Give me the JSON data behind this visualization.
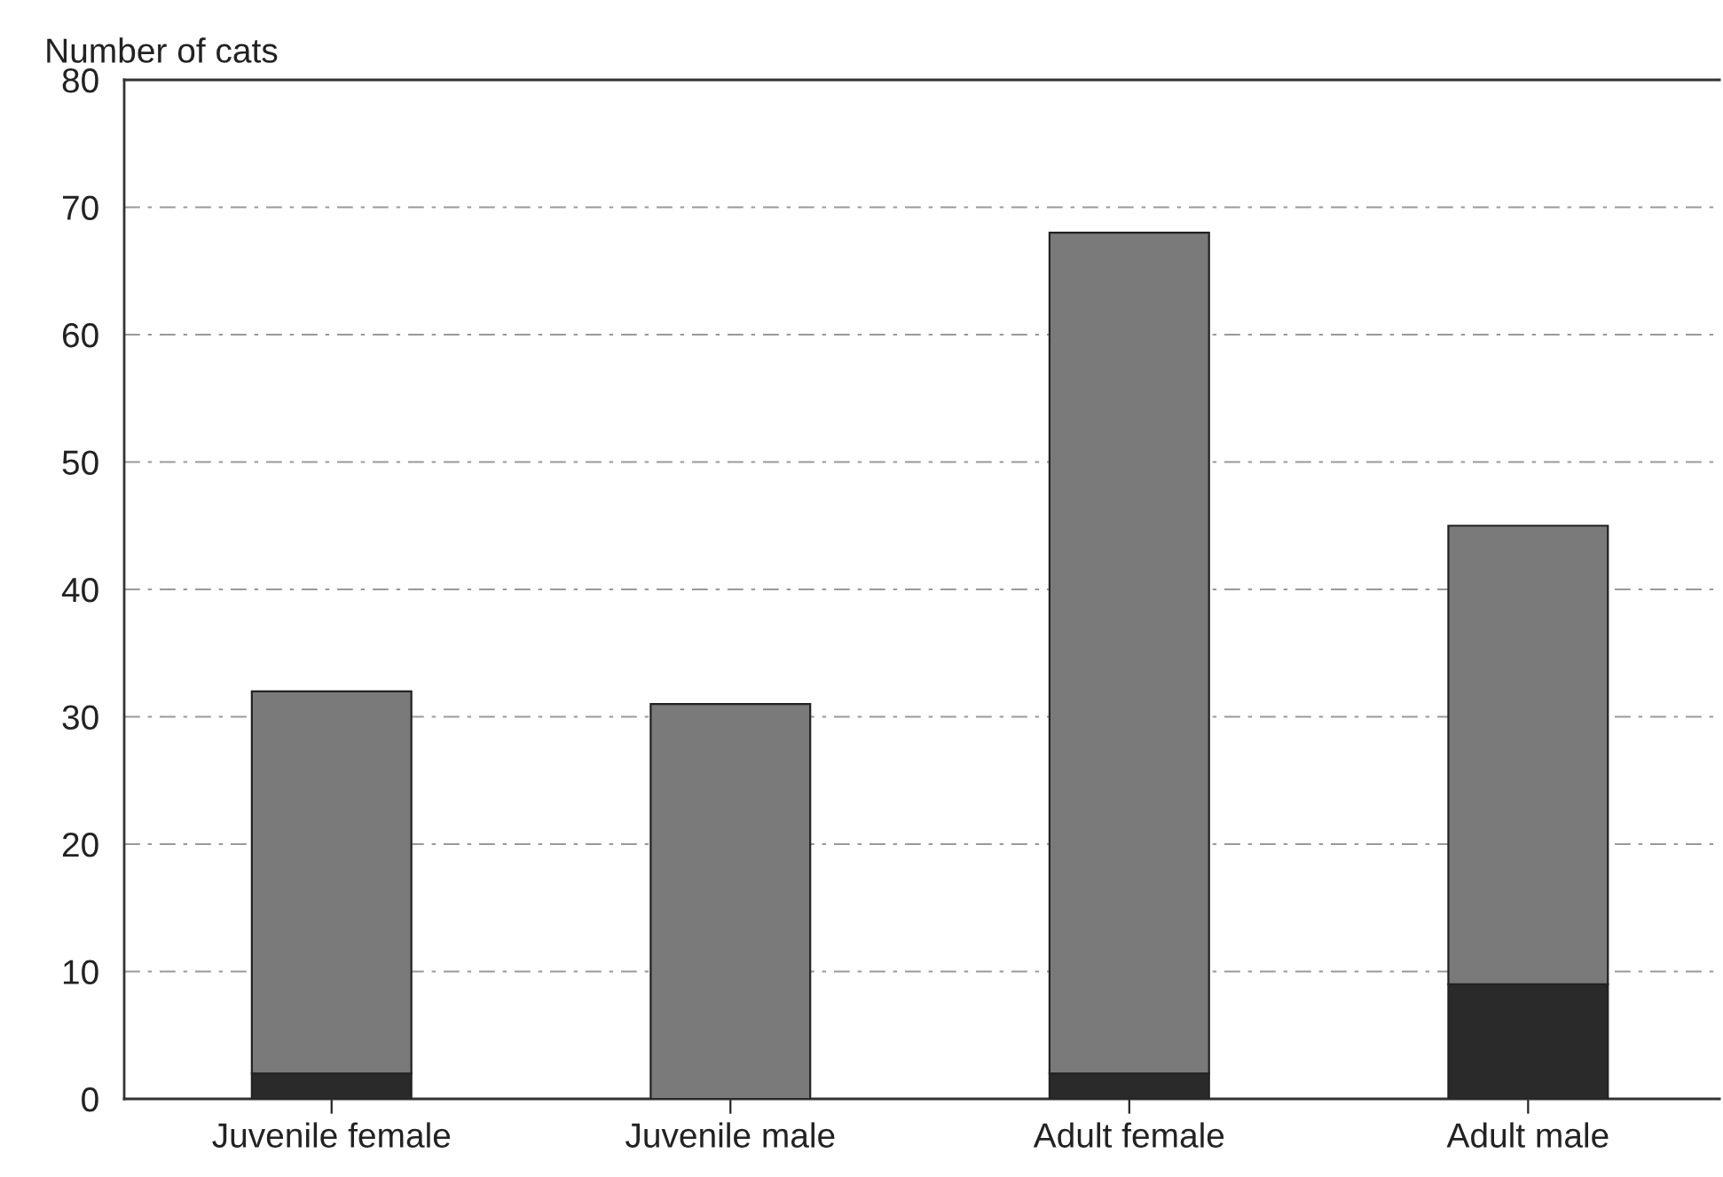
{
  "chart_data": {
    "type": "bar",
    "stacked": true,
    "ylabel": "Number of cats",
    "categories": [
      "Juvenile female",
      "Juvenile male",
      "Adult female",
      "Adult male"
    ],
    "series": [
      {
        "color": "#2a2a2a",
        "values": [
          2,
          0,
          2,
          9
        ]
      },
      {
        "color": "#7a7a7a",
        "values": [
          30,
          31,
          66,
          36
        ]
      }
    ],
    "ylim": [
      0,
      80
    ],
    "yticks": [
      0,
      10,
      20,
      30,
      40,
      50,
      60,
      70,
      80
    ],
    "grid": "y"
  }
}
